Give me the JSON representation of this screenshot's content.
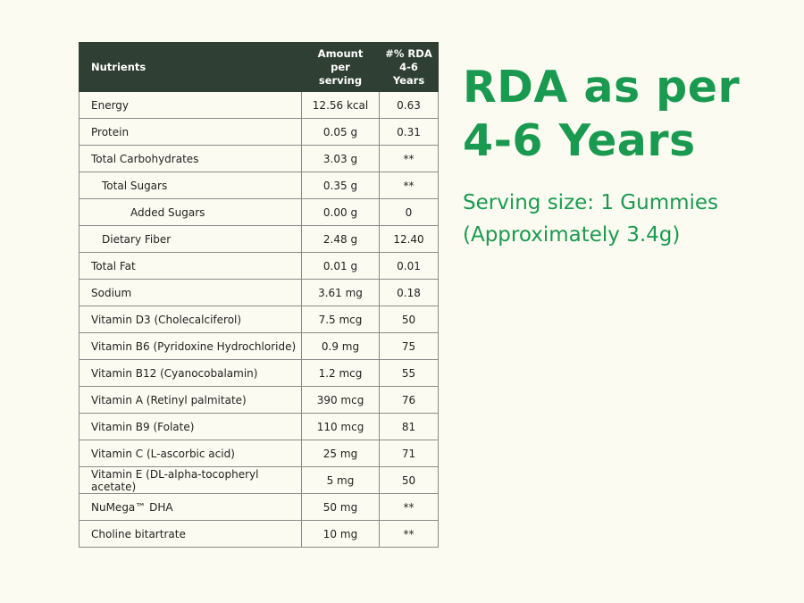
{
  "table": {
    "headers": {
      "nutrient": "Nutrients",
      "amount": [
        "Amount",
        "per",
        "serving"
      ],
      "rda": [
        "#% RDA",
        "4-6",
        "Years"
      ]
    },
    "rows": [
      {
        "name": "Energy",
        "amount": "12.56 kcal",
        "rda": "0.63",
        "indent": 0
      },
      {
        "name": "Protein",
        "amount": "0.05 g",
        "rda": "0.31",
        "indent": 0
      },
      {
        "name": "Total Carbohydrates",
        "amount": "3.03 g",
        "rda": "**",
        "indent": 0
      },
      {
        "name": "Total Sugars",
        "amount": "0.35 g",
        "rda": "**",
        "indent": 1
      },
      {
        "name": "Added Sugars",
        "amount": "0.00 g",
        "rda": "0",
        "indent": 2
      },
      {
        "name": "Dietary Fiber",
        "amount": "2.48 g",
        "rda": "12.40",
        "indent": 1
      },
      {
        "name": "Total Fat",
        "amount": "0.01 g",
        "rda": "0.01",
        "indent": 0
      },
      {
        "name": "Sodium",
        "amount": "3.61 mg",
        "rda": "0.18",
        "indent": 0
      },
      {
        "name": "Vitamin D3 (Cholecalciferol)",
        "amount": "7.5 mcg",
        "rda": "50",
        "indent": 0
      },
      {
        "name": "Vitamin B6 (Pyridoxine Hydrochloride)",
        "amount": "0.9 mg",
        "rda": "75",
        "indent": 0
      },
      {
        "name": "Vitamin B12 (Cyanocobalamin)",
        "amount": "1.2 mcg",
        "rda": "55",
        "indent": 0
      },
      {
        "name": "Vitamin A (Retinyl palmitate)",
        "amount": "390 mcg",
        "rda": "76",
        "indent": 0
      },
      {
        "name": "Vitamin B9 (Folate)",
        "amount": "110 mcg",
        "rda": "81",
        "indent": 0
      },
      {
        "name": "Vitamin C (L-ascorbic acid)",
        "amount": "25 mg",
        "rda": "71",
        "indent": 0
      },
      {
        "name": "Vitamin E (DL-alpha-tocopheryl acetate)",
        "amount": "5 mg",
        "rda": "50",
        "indent": 0
      },
      {
        "name": "NuMega™ DHA",
        "amount": "50 mg",
        "rda": "**",
        "indent": 0
      },
      {
        "name": "Choline bitartrate",
        "amount": "10 mg",
        "rda": "**",
        "indent": 0
      }
    ]
  },
  "heading": {
    "line1": "RDA as per",
    "line2": "4-6 Years"
  },
  "serving": {
    "line1": "Serving size: 1 Gummies",
    "line2": "(Approximately 3.4g)"
  },
  "colors": {
    "accent": "#1a9a50",
    "header_bg": "#2f3f33",
    "background": "#fcfbf1"
  }
}
